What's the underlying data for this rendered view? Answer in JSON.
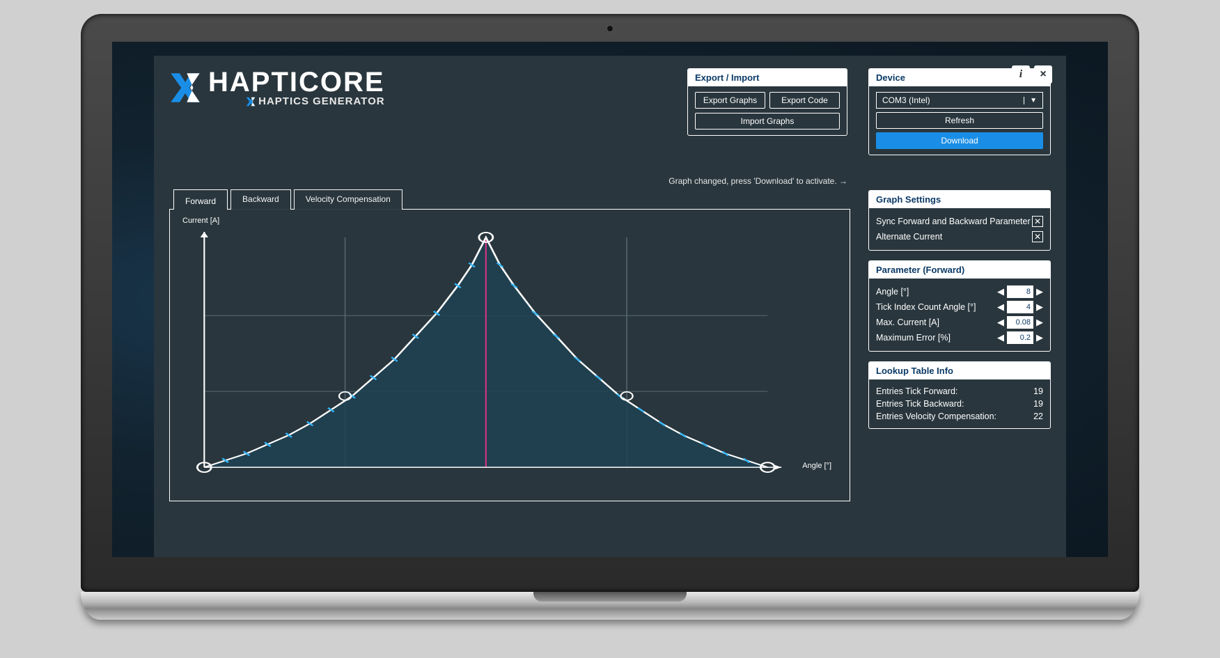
{
  "brand": {
    "name": "HAPTICORE",
    "subtitle": "HAPTICS GENERATOR",
    "accent_color": "#1a8ee6",
    "fg_color": "#ffffff",
    "panel_bg": "#29363d",
    "heading_color": "#0b3a66"
  },
  "window_buttons": {
    "info": "i",
    "close": "×"
  },
  "export_import": {
    "title": "Export / Import",
    "export_graphs": "Export Graphs",
    "export_code": "Export Code",
    "import_graphs": "Import Graphs"
  },
  "device": {
    "title": "Device",
    "selected": "COM3 (Intel)",
    "refresh": "Refresh",
    "download": "Download"
  },
  "status_line": "Graph changed, press 'Download' to activate. →",
  "tabs": {
    "forward": "Forward",
    "backward": "Backward",
    "velocity_comp": "Velocity Compensation",
    "active": "forward"
  },
  "graph_settings": {
    "title": "Graph Settings",
    "sync_label": "Sync Forward and Backward Parameter",
    "sync_checked": true,
    "alternate_label": "Alternate Current",
    "alternate_checked": true
  },
  "parameters": {
    "title": "Parameter (Forward)",
    "angle_label": "Angle [°]",
    "angle_value": "8",
    "tick_index_label": "Tick Index Count Angle [°]",
    "tick_index_value": "4",
    "max_current_label": "Max. Current [A]",
    "max_current_value": "0.08",
    "max_error_label": "Maximum Error [%]",
    "max_error_value": "0.2"
  },
  "lookup_info": {
    "title": "Lookup Table Info",
    "fwd_label": "Entries Tick Forward:",
    "fwd_val": "19",
    "bwd_label": "Entries Tick Backward:",
    "bwd_val": "19",
    "vel_label": "Entries Velocity Compensation:",
    "vel_val": "22"
  },
  "chart": {
    "type": "line-area",
    "y_label": "Current [A]",
    "x_label": "Angle [°]",
    "xlim": [
      0,
      8
    ],
    "ylim": [
      0,
      1
    ],
    "x_gridlines": [
      2,
      4,
      6
    ],
    "y_gridlines": [
      0.33,
      0.66
    ],
    "curve_points": [
      [
        0.0,
        0.0
      ],
      [
        0.3,
        0.03
      ],
      [
        0.6,
        0.06
      ],
      [
        0.9,
        0.1
      ],
      [
        1.2,
        0.14
      ],
      [
        1.5,
        0.19
      ],
      [
        1.8,
        0.25
      ],
      [
        2.1,
        0.31
      ],
      [
        2.4,
        0.39
      ],
      [
        2.7,
        0.47
      ],
      [
        3.0,
        0.57
      ],
      [
        3.3,
        0.67
      ],
      [
        3.6,
        0.79
      ],
      [
        3.8,
        0.88
      ],
      [
        4.0,
        1.0
      ],
      [
        4.2,
        0.88
      ],
      [
        4.4,
        0.79
      ],
      [
        4.7,
        0.67
      ],
      [
        5.0,
        0.57
      ],
      [
        5.3,
        0.47
      ],
      [
        5.6,
        0.39
      ],
      [
        5.9,
        0.31
      ],
      [
        6.2,
        0.25
      ],
      [
        6.5,
        0.19
      ],
      [
        6.8,
        0.14
      ],
      [
        7.1,
        0.1
      ],
      [
        7.4,
        0.06
      ],
      [
        7.7,
        0.03
      ],
      [
        8.0,
        0.0
      ]
    ],
    "tick_marks_x": [
      0.3,
      0.6,
      0.9,
      1.2,
      1.5,
      1.8,
      2.1,
      2.4,
      2.7,
      3.0,
      3.3,
      3.6,
      3.8,
      4.2,
      4.4,
      4.7,
      5.0,
      5.3,
      5.6,
      5.9,
      6.2,
      6.5,
      6.8,
      7.1,
      7.4,
      7.7
    ],
    "control_points": [
      [
        0,
        0
      ],
      [
        4,
        1
      ],
      [
        8,
        0
      ]
    ],
    "handle_points": [
      [
        2,
        0.31
      ],
      [
        6,
        0.31
      ]
    ],
    "peak_line_x": 4,
    "curve_color": "#ffffff",
    "fill_color": "#1e4252",
    "fill_opacity": 0.85,
    "tick_color": "#35b8ff",
    "grid_color": "#5a6a72",
    "peak_line_color": "#d63384",
    "axis_color": "#ffffff",
    "control_point_stroke": "#ffffff",
    "line_width": 2
  }
}
